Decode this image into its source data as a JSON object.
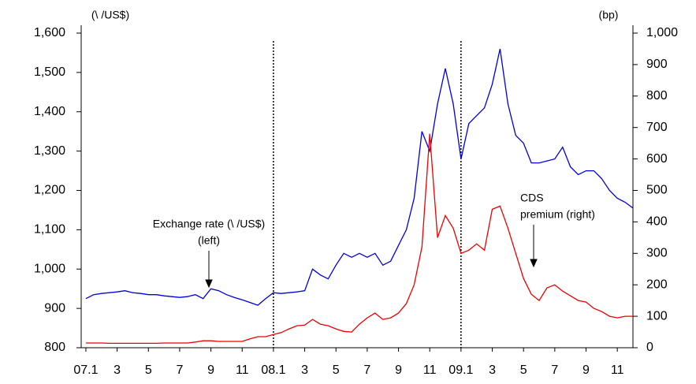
{
  "chart_data": {
    "type": "line",
    "y_unit_label": "(\\ /US$)",
    "y2_unit_label": "(bp)",
    "x": [
      0,
      0.5,
      1,
      1.5,
      2,
      2.5,
      3,
      3.5,
      4,
      4.5,
      5,
      5.5,
      6,
      6.5,
      7,
      7.5,
      8,
      8.5,
      9,
      9.5,
      10,
      10.5,
      11,
      11.5,
      12,
      12.5,
      13,
      13.5,
      14,
      14.5,
      15,
      15.5,
      16,
      16.5,
      17,
      17.5,
      18,
      18.5,
      19,
      19.5,
      20,
      20.5,
      21,
      21.5,
      22,
      22.5,
      23,
      23.5,
      24,
      24.5,
      25,
      25.5,
      26,
      26.5,
      27,
      27.5,
      28,
      28.5,
      29,
      29.5,
      30,
      30.5,
      31,
      31.5,
      32,
      32.5,
      33,
      33.5,
      34,
      34.5,
      35
    ],
    "series": [
      {
        "color": "#0000dd",
        "axis": "y",
        "values": [
          925,
          935,
          938,
          940,
          942,
          945,
          940,
          938,
          935,
          935,
          932,
          930,
          928,
          930,
          935,
          925,
          950,
          945,
          935,
          928,
          922,
          915,
          908,
          925,
          940,
          938,
          940,
          942,
          945,
          1000,
          985,
          975,
          1010,
          1040,
          1030,
          1040,
          1030,
          1040,
          1010,
          1020,
          1060,
          1100,
          1180,
          1350,
          1300,
          1420,
          1510,
          1420,
          1280,
          1370,
          1390,
          1410,
          1470,
          1560,
          1420,
          1340,
          1320,
          1270,
          1270,
          1275,
          1280,
          1310,
          1260,
          1240,
          1250,
          1250,
          1230,
          1200,
          1180,
          1170,
          1155
        ]
      },
      {
        "color": "#ee0000",
        "axis": "y2",
        "values": [
          15,
          15,
          15,
          14,
          14,
          14,
          14,
          14,
          14,
          14,
          15,
          15,
          15,
          15,
          18,
          22,
          22,
          20,
          20,
          20,
          20,
          28,
          35,
          35,
          42,
          48,
          60,
          70,
          72,
          90,
          75,
          70,
          60,
          52,
          50,
          75,
          95,
          110,
          90,
          95,
          110,
          140,
          200,
          320,
          680,
          350,
          420,
          380,
          300,
          310,
          330,
          310,
          440,
          450,
          380,
          300,
          220,
          170,
          150,
          190,
          200,
          180,
          165,
          150,
          145,
          125,
          115,
          100,
          95,
          100,
          100
        ]
      }
    ],
    "xlim": [
      -0.3,
      35
    ],
    "xticks": [
      {
        "value": 0,
        "label": "07.1"
      },
      {
        "value": 2,
        "label": "3"
      },
      {
        "value": 4,
        "label": "5"
      },
      {
        "value": 6,
        "label": "7"
      },
      {
        "value": 8,
        "label": "9"
      },
      {
        "value": 10,
        "label": "11"
      },
      {
        "value": 12,
        "label": "08.1"
      },
      {
        "value": 14,
        "label": "3"
      },
      {
        "value": 16,
        "label": "5"
      },
      {
        "value": 18,
        "label": "7"
      },
      {
        "value": 20,
        "label": "9"
      },
      {
        "value": 22,
        "label": "11"
      },
      {
        "value": 24,
        "label": "09.1"
      },
      {
        "value": 26,
        "label": "3"
      },
      {
        "value": 28,
        "label": "5"
      },
      {
        "value": 30,
        "label": "7"
      },
      {
        "value": 32,
        "label": "9"
      },
      {
        "value": 34,
        "label": "11"
      }
    ],
    "ylim": [
      800,
      1600
    ],
    "yticks": [
      800,
      900,
      {
        "value": 1000,
        "label": "1,000"
      },
      {
        "value": 1100,
        "label": "1,100"
      },
      {
        "value": 1200,
        "label": "1,200"
      },
      {
        "value": 1300,
        "label": "1,300"
      },
      {
        "value": 1400,
        "label": "1,400"
      },
      {
        "value": 1500,
        "label": "1,500"
      },
      {
        "value": 1600,
        "label": "1,600"
      }
    ],
    "y2lim": [
      0,
      1000
    ],
    "y2ticks": [
      0,
      100,
      200,
      300,
      400,
      500,
      600,
      700,
      800,
      900,
      {
        "value": 1000,
        "label": "1,000"
      }
    ],
    "vlines": [
      12,
      24
    ],
    "annotations": [
      "Exchange rate (\\  /US$)",
      "(left)",
      "CDS",
      "premium (right)"
    ]
  }
}
